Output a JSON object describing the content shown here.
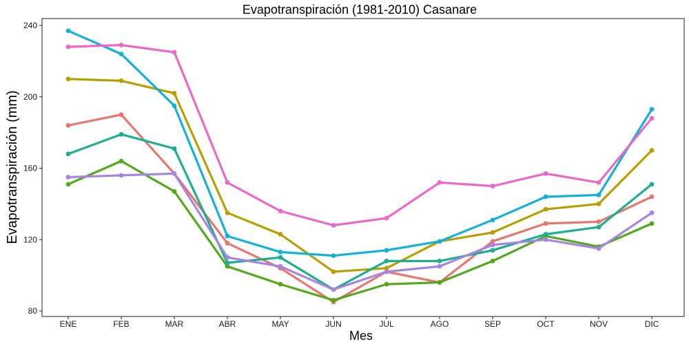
{
  "chart_data": {
    "type": "line",
    "title": "Evapotranspiración (1981-2010)  Casanare",
    "xlabel": "Mes",
    "ylabel": "Evapotranspiración (mm)",
    "categories": [
      "ENE",
      "FEB",
      "MAR",
      "ABR",
      "MAY",
      "JUN",
      "JUL",
      "AGO",
      "SEP",
      "OCT",
      "NOV",
      "DIC"
    ],
    "ylim": [
      78,
      244
    ],
    "yticks": [
      80,
      120,
      160,
      200,
      240
    ],
    "yticks_labels": [
      "80",
      "120",
      "160",
      "200",
      "240"
    ],
    "grid": false,
    "legend": "none",
    "series": [
      {
        "color": "#E7766F",
        "values": [
          184,
          190,
          157,
          118,
          104,
          85,
          102,
          96,
          119,
          129,
          130,
          144
        ]
      },
      {
        "color": "#B79F00",
        "values": [
          210,
          209,
          202,
          135,
          123,
          102,
          104,
          119,
          124,
          137,
          140,
          170
        ]
      },
      {
        "color": "#53A81B",
        "values": [
          151,
          164,
          147,
          105,
          95,
          86,
          95,
          96,
          108,
          122,
          116,
          129
        ]
      },
      {
        "color": "#1CAF8F",
        "values": [
          168,
          179,
          171,
          107,
          110,
          92,
          108,
          108,
          114,
          123,
          127,
          151
        ]
      },
      {
        "color": "#11B1DA",
        "values": [
          237,
          224,
          195,
          122,
          113,
          111,
          114,
          119,
          131,
          144,
          145,
          193
        ]
      },
      {
        "color": "#A584E2",
        "values": [
          155,
          156,
          157,
          110,
          105,
          92,
          102,
          105,
          117,
          120,
          115,
          135
        ]
      },
      {
        "color": "#EC68C8",
        "values": [
          228,
          229,
          225,
          152,
          136,
          128,
          132,
          152,
          150,
          157,
          152,
          188
        ]
      }
    ]
  }
}
